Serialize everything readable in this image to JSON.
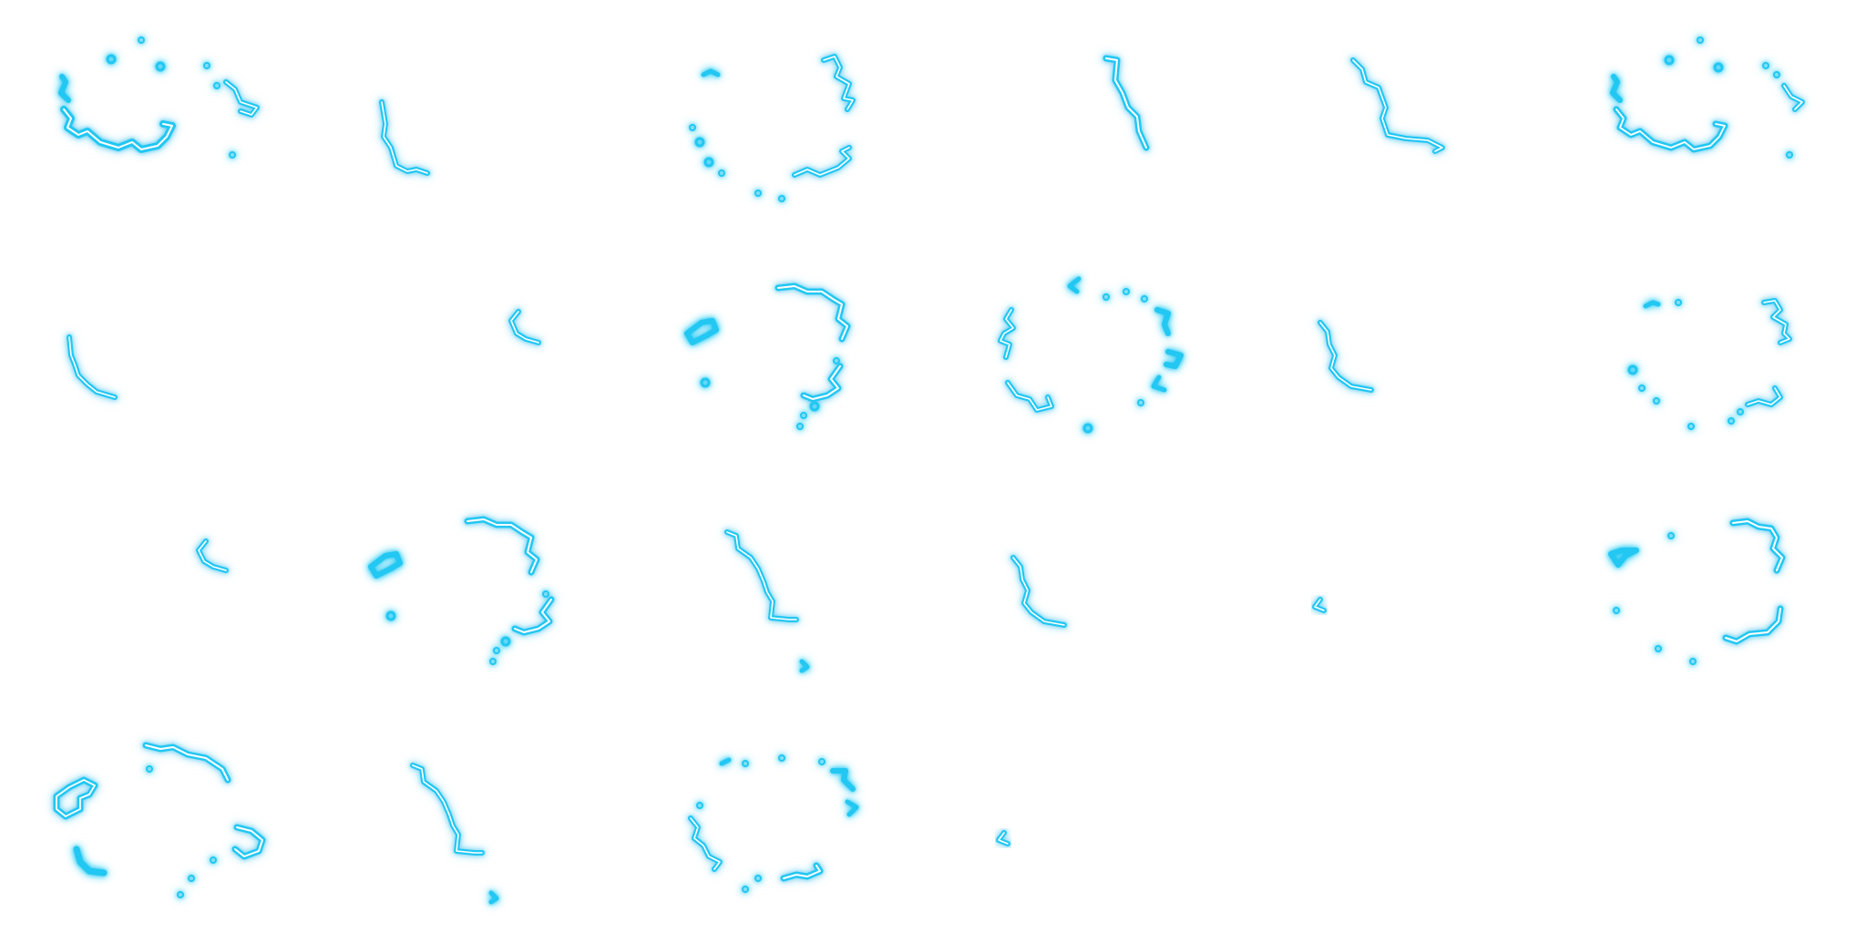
{
  "sprite_sheet": {
    "kind": "electric-ring-effect-frames",
    "grid": {
      "columns": 6,
      "rows": 4
    },
    "frame_count": 21,
    "colors": {
      "glow": "#22c7f2",
      "core": "#ffffff",
      "mid": "#8fe6fb"
    },
    "frames": [
      {
        "id": 1
      },
      {
        "id": 2
      },
      {
        "id": 3
      },
      {
        "id": 4
      },
      {
        "id": 5
      },
      {
        "id": 6
      },
      {
        "id": 7
      },
      {
        "id": 8
      },
      {
        "id": 9
      },
      {
        "id": 10
      },
      {
        "id": 11
      },
      {
        "id": 12
      },
      {
        "id": 13
      },
      {
        "id": 14
      },
      {
        "id": 15
      },
      {
        "id": 16
      },
      {
        "id": 17
      },
      {
        "id": 18
      },
      {
        "id": 19
      },
      {
        "id": 20
      },
      {
        "id": 21
      }
    ]
  }
}
